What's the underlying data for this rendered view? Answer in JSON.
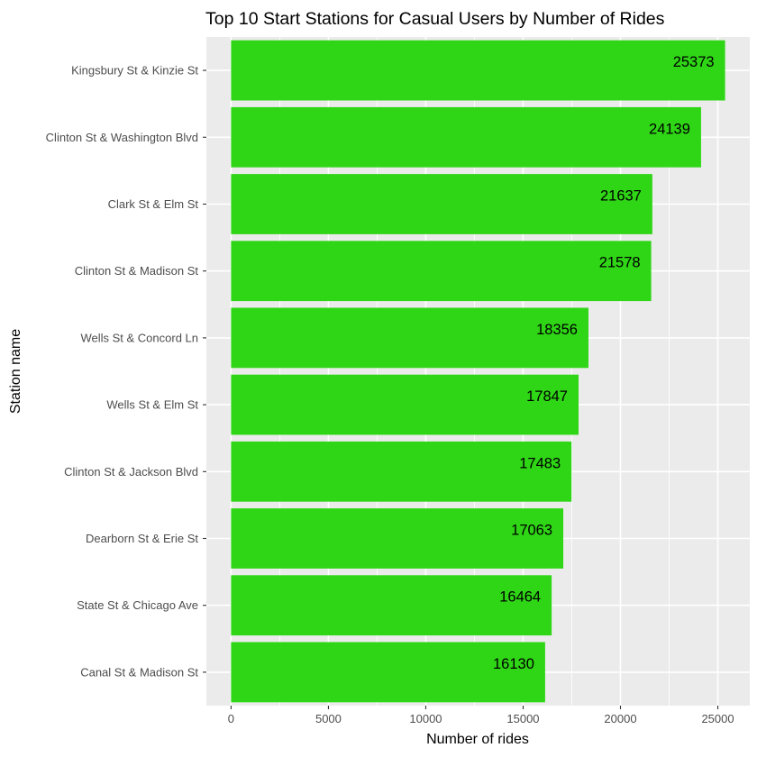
{
  "chart_data": {
    "type": "bar",
    "orientation": "horizontal",
    "title": "Top 10 Start Stations for Casual Users by Number of Rides",
    "xlabel": "Number of rides",
    "ylabel": "Station name",
    "categories": [
      "Kingsbury St & Kinzie St",
      "Clinton St & Washington Blvd",
      "Clark St & Elm St",
      "Clinton St & Madison St",
      "Wells St & Concord Ln",
      "Wells St & Elm St",
      "Clinton St & Jackson Blvd",
      "Dearborn St & Erie St",
      "State St & Chicago Ave",
      "Canal St & Madison St"
    ],
    "values": [
      25373,
      24139,
      21637,
      21578,
      18356,
      17847,
      17483,
      17063,
      16464,
      16130
    ],
    "x_ticks": [
      "0",
      "5000",
      "10000",
      "15000",
      "20000",
      "25000"
    ],
    "xlim": [
      -1268.65,
      26641.65
    ],
    "grid": true,
    "bar_color": "#2fd616",
    "panel_background": "#ebebeb",
    "grid_color": "#ffffff"
  }
}
